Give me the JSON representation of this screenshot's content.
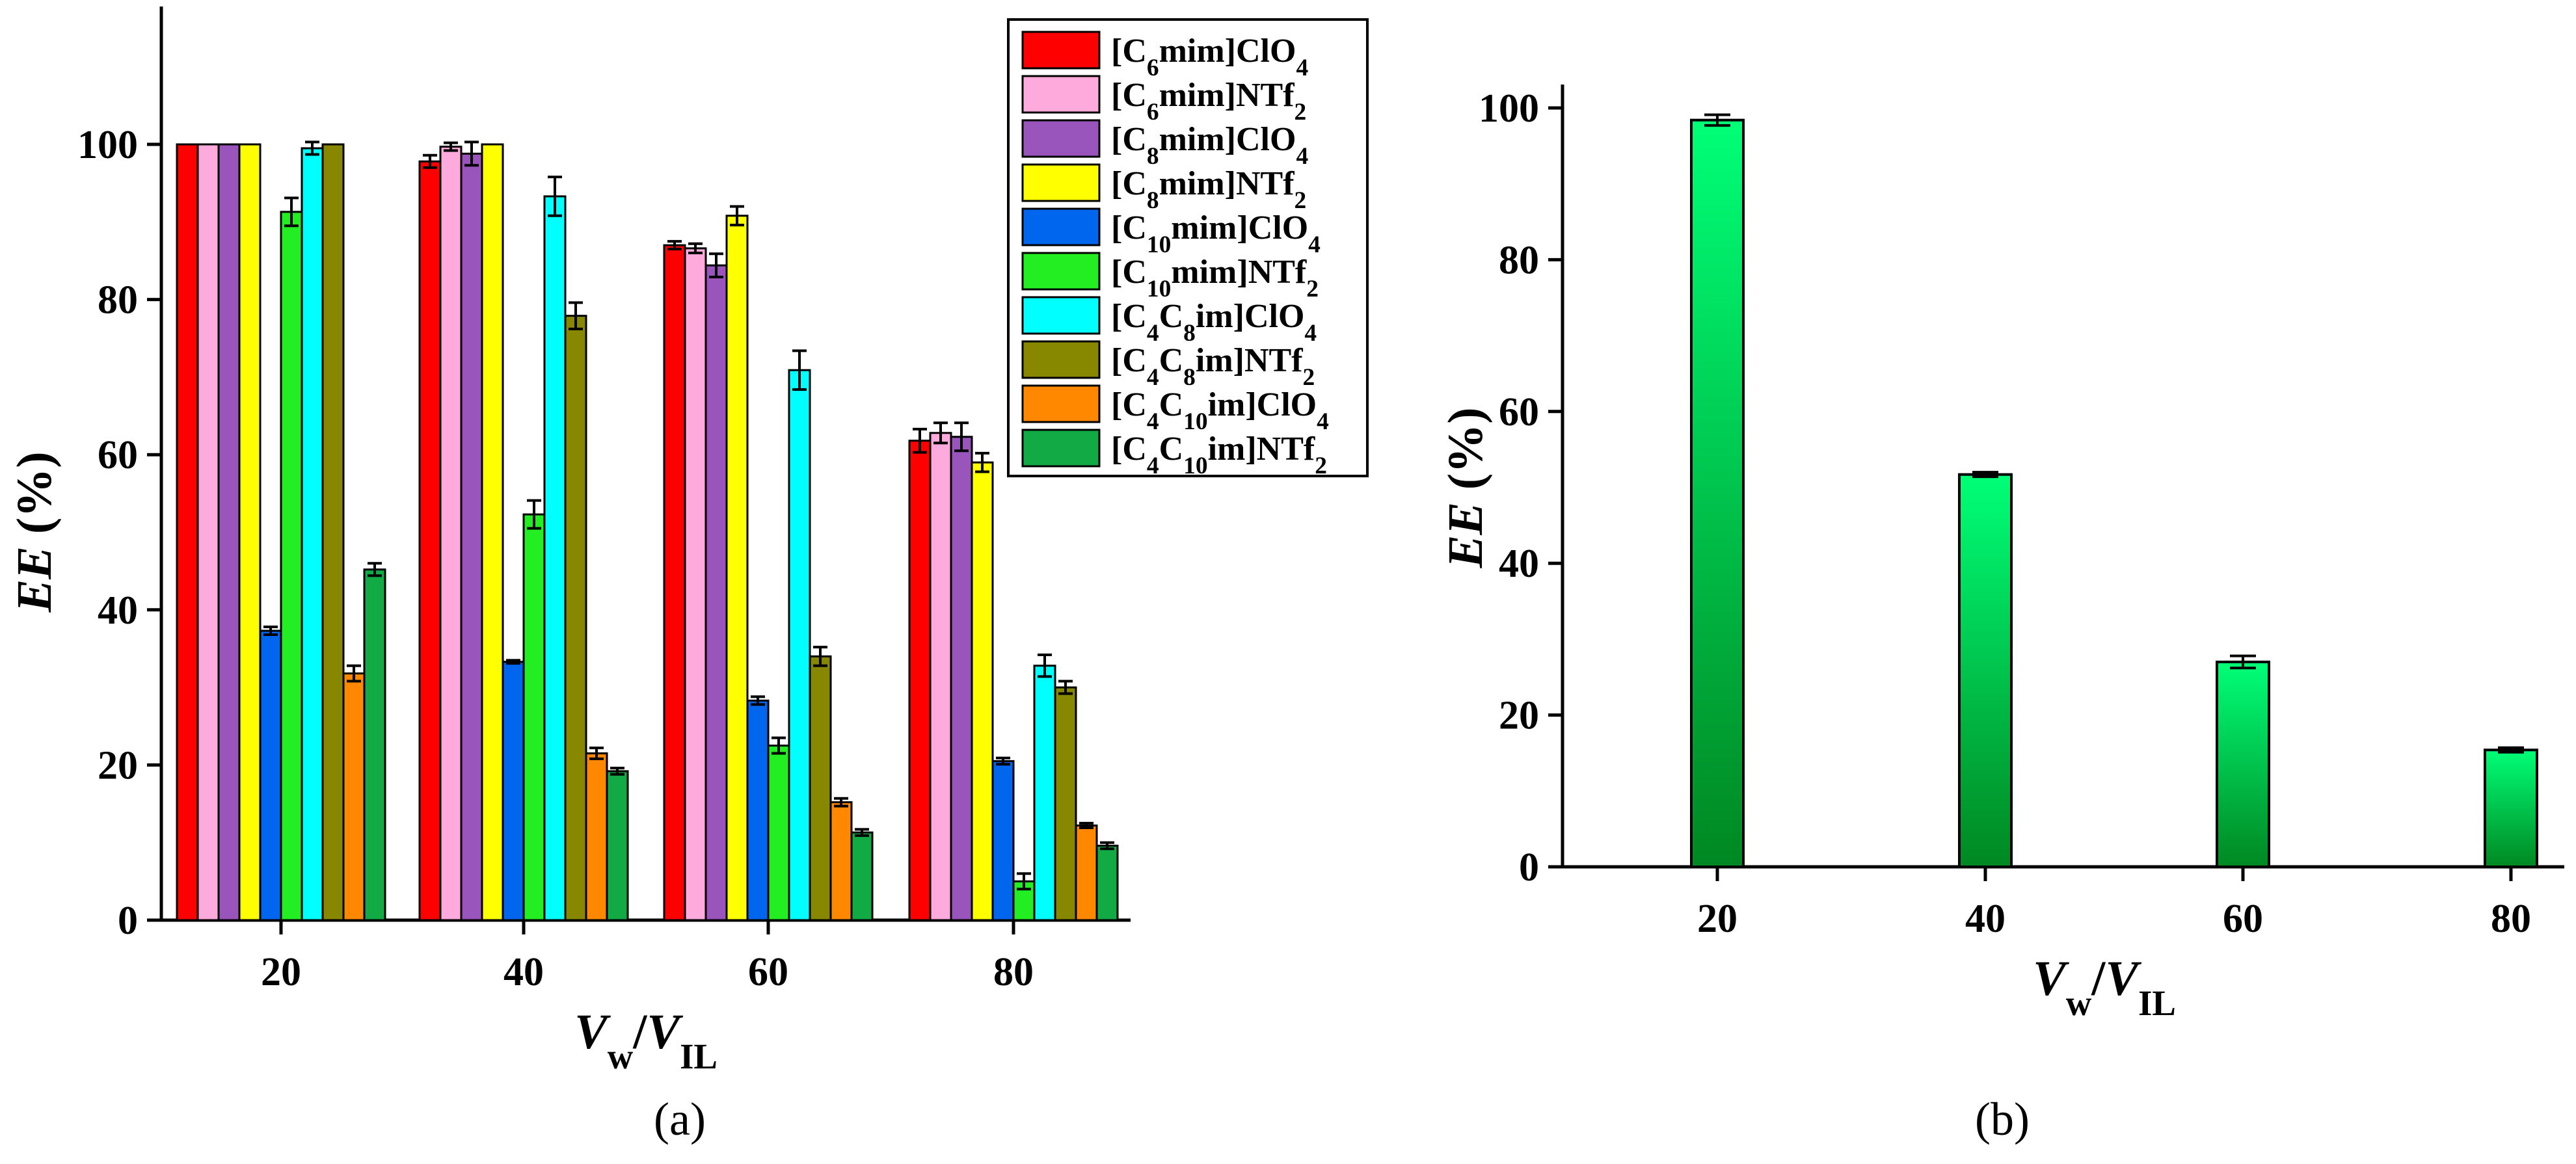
{
  "chart_data": [
    {
      "panel_label": "(a)",
      "type": "bar",
      "categories": [
        "20",
        "40",
        "60",
        "80"
      ],
      "xlabel": {
        "main": "V",
        "sub": "w",
        "sep": "/",
        "main2": "V",
        "sub2": "IL"
      },
      "ylabel": "EE (%)",
      "ylabel_parts": {
        "italic": "EE",
        "rest": " (%)"
      },
      "ylim": [
        0,
        100
      ],
      "yticks": [
        0,
        20,
        40,
        60,
        80,
        100
      ],
      "legend_position": "top-right",
      "series": [
        {
          "name": "[C6mim]ClO4",
          "name_parts": [
            [
              "[C",
              ""
            ],
            [
              "6",
              "sub"
            ],
            [
              "mim]ClO",
              ""
            ],
            [
              "4",
              "sub"
            ]
          ],
          "color": "#ff0000",
          "values": [
            100,
            97.8,
            87.0,
            61.8
          ],
          "errors": [
            0,
            0.8,
            0.5,
            1.5
          ]
        },
        {
          "name": "[C6mim]NTf2",
          "name_parts": [
            [
              "[C",
              ""
            ],
            [
              "6",
              "sub"
            ],
            [
              "mim]NTf",
              ""
            ],
            [
              "2",
              "sub"
            ]
          ],
          "color": "#ffaadd",
          "values": [
            100,
            99.7,
            86.6,
            62.8
          ],
          "errors": [
            0,
            0.5,
            0.6,
            1.3
          ]
        },
        {
          "name": "[C8mim]ClO4",
          "name_parts": [
            [
              "[C",
              ""
            ],
            [
              "8",
              "sub"
            ],
            [
              "mim]ClO",
              ""
            ],
            [
              "4",
              "sub"
            ]
          ],
          "color": "#9955bb",
          "values": [
            100,
            98.8,
            84.4,
            62.3
          ],
          "errors": [
            0,
            1.5,
            1.5,
            1.8
          ]
        },
        {
          "name": "[C8mim]NTf2",
          "name_parts": [
            [
              "[C",
              ""
            ],
            [
              "8",
              "sub"
            ],
            [
              "mim]NTf",
              ""
            ],
            [
              "2",
              "sub"
            ]
          ],
          "color": "#ffff00",
          "values": [
            100,
            100,
            90.8,
            59.0
          ],
          "errors": [
            0,
            0,
            1.2,
            1.2
          ]
        },
        {
          "name": "[C10mim]ClO4",
          "name_parts": [
            [
              "[C",
              ""
            ],
            [
              "10",
              "sub"
            ],
            [
              "mim]ClO",
              ""
            ],
            [
              "4",
              "sub"
            ]
          ],
          "color": "#0066ee",
          "values": [
            37.3,
            33.3,
            28.3,
            20.5
          ],
          "errors": [
            0.5,
            0.2,
            0.5,
            0.4
          ]
        },
        {
          "name": "[C10mim]NTf2",
          "name_parts": [
            [
              "[C",
              ""
            ],
            [
              "10",
              "sub"
            ],
            [
              "mim]NTf",
              ""
            ],
            [
              "2",
              "sub"
            ]
          ],
          "color": "#22ee22",
          "values": [
            91.3,
            52.3,
            22.5,
            5.0
          ],
          "errors": [
            1.8,
            1.8,
            1.0,
            1.0
          ]
        },
        {
          "name": "[C4C8im]ClO4",
          "name_parts": [
            [
              "[C",
              ""
            ],
            [
              "4",
              "sub"
            ],
            [
              "C",
              ""
            ],
            [
              "8",
              "sub"
            ],
            [
              "im]ClO",
              ""
            ],
            [
              "4",
              "sub"
            ]
          ],
          "color": "#00ffff",
          "values": [
            99.5,
            93.3,
            70.9,
            32.8
          ],
          "errors": [
            0.8,
            2.5,
            2.5,
            1.4
          ]
        },
        {
          "name": "[C4C8im]NTf2",
          "name_parts": [
            [
              "[C",
              ""
            ],
            [
              "4",
              "sub"
            ],
            [
              "C",
              ""
            ],
            [
              "8",
              "sub"
            ],
            [
              "im]NTf",
              ""
            ],
            [
              "2",
              "sub"
            ]
          ],
          "color": "#888800",
          "values": [
            100,
            77.9,
            34.0,
            30.0
          ],
          "errors": [
            0,
            1.7,
            1.2,
            0.8
          ]
        },
        {
          "name": "[C4C10im]ClO4",
          "name_parts": [
            [
              "[C",
              ""
            ],
            [
              "4",
              "sub"
            ],
            [
              "C",
              ""
            ],
            [
              "10",
              "sub"
            ],
            [
              "im]ClO",
              ""
            ],
            [
              "4",
              "sub"
            ]
          ],
          "color": "#ff8800",
          "values": [
            31.8,
            21.5,
            15.2,
            12.2
          ],
          "errors": [
            1.0,
            0.7,
            0.5,
            0.3
          ]
        },
        {
          "name": "[C4C10im]NTf2",
          "name_parts": [
            [
              "[C",
              ""
            ],
            [
              "4",
              "sub"
            ],
            [
              "C",
              ""
            ],
            [
              "10",
              "sub"
            ],
            [
              "im]NTf",
              ""
            ],
            [
              "2",
              "sub"
            ]
          ],
          "color": "#11aa44",
          "values": [
            45.2,
            19.2,
            11.3,
            9.6
          ],
          "errors": [
            0.8,
            0.4,
            0.4,
            0.4
          ]
        }
      ]
    },
    {
      "panel_label": "(b)",
      "type": "bar",
      "categories": [
        "20",
        "40",
        "60",
        "80"
      ],
      "xlabel": {
        "main": "V",
        "sub": "w",
        "sep": "/",
        "main2": "V",
        "sub2": "IL"
      },
      "ylabel": "EE (%)",
      "ylabel_parts": {
        "italic": "EE",
        "rest": " (%)"
      },
      "ylim": [
        0,
        100
      ],
      "yticks": [
        0,
        20,
        40,
        60,
        80,
        100
      ],
      "series": [
        {
          "color_top": "#00ff77",
          "color_bottom": "#008822",
          "values": [
            98.4,
            51.7,
            27.0,
            15.4
          ],
          "errors": [
            0.7,
            0.3,
            0.8,
            0.3
          ]
        }
      ]
    }
  ]
}
